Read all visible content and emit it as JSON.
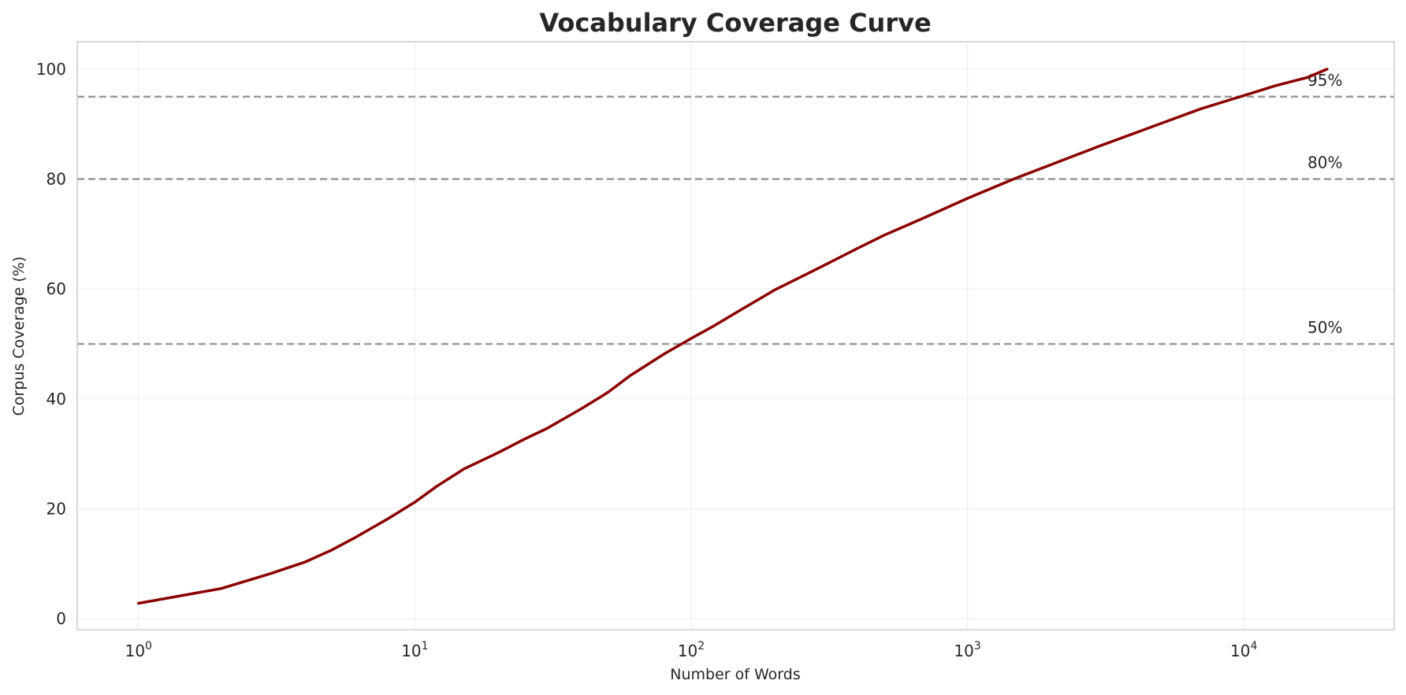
{
  "chart_data": {
    "type": "line",
    "title": "Vocabulary Coverage Curve",
    "xlabel": "Number of Words",
    "ylabel": "Corpus Coverage (%)",
    "x_scale": "log",
    "xlim": [
      0.6,
      35000
    ],
    "ylim": [
      -2,
      105
    ],
    "grid": true,
    "x_ticks": [
      {
        "value": 1,
        "base": "10",
        "exp": "0"
      },
      {
        "value": 10,
        "base": "10",
        "exp": "1"
      },
      {
        "value": 100,
        "base": "10",
        "exp": "2"
      },
      {
        "value": 1000,
        "base": "10",
        "exp": "3"
      },
      {
        "value": 10000,
        "base": "10",
        "exp": "4"
      }
    ],
    "y_ticks": [
      {
        "value": 0,
        "label": "0"
      },
      {
        "value": 20,
        "label": "20"
      },
      {
        "value": 40,
        "label": "40"
      },
      {
        "value": 60,
        "label": "60"
      },
      {
        "value": 80,
        "label": "80"
      },
      {
        "value": 100,
        "label": "100"
      }
    ],
    "reference_lines": [
      {
        "y": 50,
        "label": "50%"
      },
      {
        "y": 80,
        "label": "80%"
      },
      {
        "y": 95,
        "label": "95%"
      }
    ],
    "series": [
      {
        "color": "#8b0000",
        "x": [
          1,
          2,
          3,
          4,
          5,
          6,
          8,
          10,
          12,
          15,
          20,
          25,
          30,
          40,
          50,
          60,
          80,
          100,
          120,
          150,
          200,
          300,
          400,
          500,
          700,
          1000,
          1500,
          2000,
          3000,
          5000,
          7000,
          10000,
          13000,
          17000,
          20000
        ],
        "y": [
          2.8,
          5.5,
          8.2,
          10.3,
          12.5,
          14.6,
          18.2,
          21.2,
          24.1,
          27.2,
          30.2,
          32.7,
          34.6,
          38.2,
          41.2,
          44.2,
          48.2,
          51.0,
          53.2,
          56.1,
          59.8,
          64.2,
          67.4,
          69.8,
          73.0,
          76.5,
          80.2,
          82.6,
          86.0,
          90.1,
          92.8,
          95.2,
          97.0,
          98.5,
          100.0
        ]
      }
    ]
  }
}
